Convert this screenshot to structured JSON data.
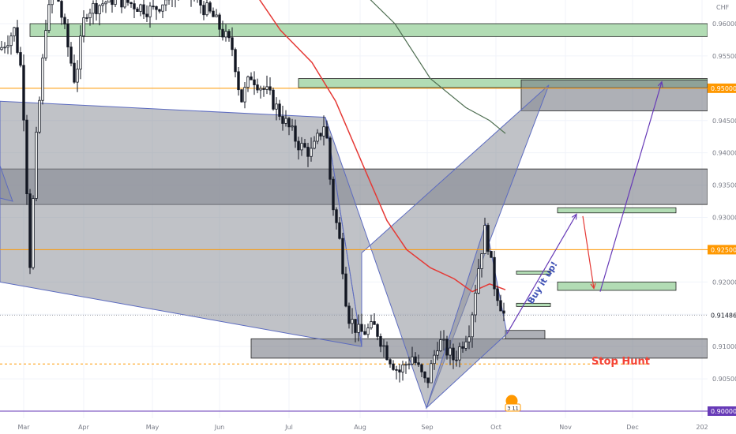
{
  "chart_data": {
    "type": "candlestick",
    "currency_label": "CHF",
    "y_ticks": [
      "0.96000",
      "0.95500",
      "0.95000",
      "0.94500",
      "0.94000",
      "0.93500",
      "0.93000",
      "0.92500",
      "0.92000",
      "0.91500",
      "0.91000",
      "0.90500",
      "0.90000"
    ],
    "x_ticks": [
      "Mar",
      "Apr",
      "May",
      "Jun",
      "Jul",
      "Aug",
      "Sep",
      "Oct",
      "Nov",
      "Dec",
      "202"
    ],
    "ylim": [
      0.8996,
      0.9623
    ],
    "price_tags": [
      {
        "text": "0.95000",
        "price": 0.95,
        "bg": "#ff9800",
        "fg": "#ffffff"
      },
      {
        "text": "0.92500",
        "price": 0.925,
        "bg": "#ff9800",
        "fg": "#ffffff"
      },
      {
        "text": "0.91486",
        "price": 0.91486,
        "bg": "#ffffff",
        "fg": "#131722"
      },
      {
        "text": "0.90000",
        "price": 0.9,
        "bg": "#673ab7",
        "fg": "#ffffff"
      }
    ],
    "horizontal_lines": [
      {
        "price": 0.95,
        "color": "#ff9800",
        "style": "solid"
      },
      {
        "price": 0.925,
        "color": "#ff9800",
        "style": "solid"
      },
      {
        "price": 0.9,
        "color": "#673ab7",
        "style": "solid"
      },
      {
        "price": 0.91486,
        "color": "#9598a1",
        "style": "dotted"
      }
    ],
    "annotations": [
      {
        "text": "Buy it up!",
        "color": "#3f51b5"
      },
      {
        "text": "Stop Hunt",
        "color": "#f44336"
      }
    ],
    "event_badges": [
      "3 11"
    ],
    "colors": {
      "moving_average_red": "#e53935",
      "moving_average_green": "#4f6f52",
      "candle": "#131722",
      "zone_green": "#a5d6a7",
      "zone_gray": "#787b86",
      "pattern_fill": "#8c8f99",
      "arrow_purple": "#673ab7",
      "arrow_red": "#e53935"
    }
  }
}
